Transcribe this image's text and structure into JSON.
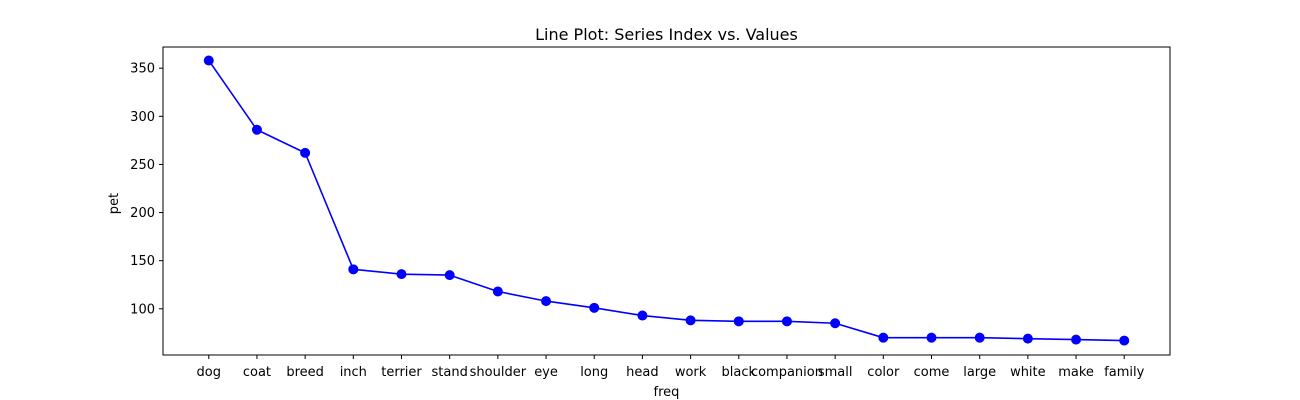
{
  "chart_data": {
    "type": "line",
    "title": "Line Plot: Series Index vs. Values",
    "xlabel": "freq",
    "ylabel": "pet",
    "categories": [
      "dog",
      "coat",
      "breed",
      "inch",
      "terrier",
      "stand",
      "shoulder",
      "eye",
      "long",
      "head",
      "work",
      "black",
      "companion",
      "small",
      "color",
      "come",
      "large",
      "white",
      "make",
      "family"
    ],
    "series": [
      {
        "values": [
          358,
          286,
          262,
          141,
          136,
          135,
          118,
          108,
          101,
          93,
          88,
          87,
          87,
          85,
          70,
          70,
          70,
          69,
          68,
          67
        ],
        "color": "#0000ff"
      }
    ],
    "ylim": [
      52,
      372
    ],
    "yticks": [
      100,
      150,
      200,
      250,
      300,
      350
    ],
    "grid": false,
    "legend": "none",
    "colors": {
      "line": "#0000ff",
      "axes": "#000000",
      "background": "#ffffff"
    }
  }
}
